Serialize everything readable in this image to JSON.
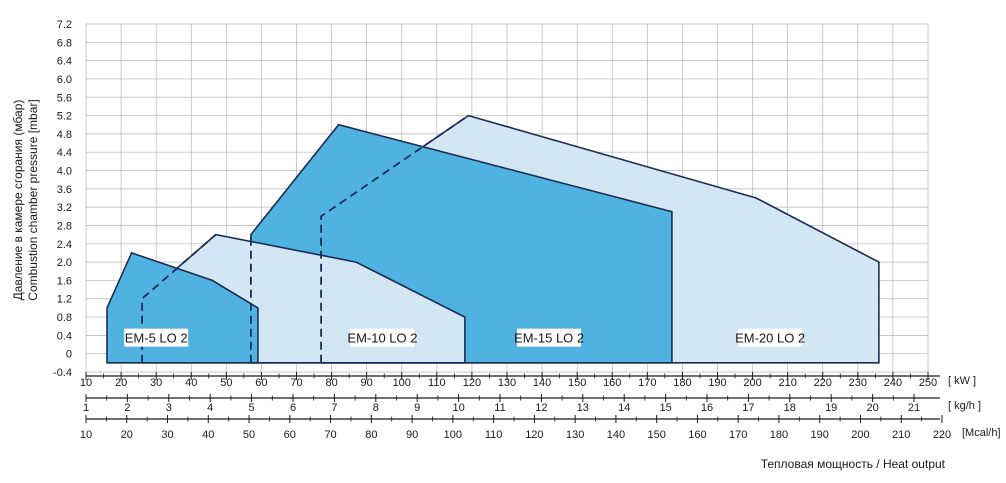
{
  "chart_data": {
    "type": "area",
    "ylabel": {
      "line1": "Давление в камере сгорания (мбар)",
      "line2": "Combustion chamber pressure [mbar]"
    },
    "xlabel": "Тепловая мощность / Heat output",
    "y_axis": {
      "ylim": [
        -0.4,
        7.2
      ],
      "ticks": [
        "-0.4",
        "0",
        "0.4",
        "0.8",
        "1.2",
        "1.6",
        "2.0",
        "2.4",
        "2.8",
        "3.2",
        "3.6",
        "4.0",
        "4.4",
        "4.8",
        "5.2",
        "5.6",
        "6.0",
        "6.4",
        "6.8",
        "7.2"
      ]
    },
    "x_axes": [
      {
        "unit": "[ kW ]",
        "range": [
          10,
          250
        ],
        "ticks": [
          "10",
          "20",
          "30",
          "40",
          "50",
          "60",
          "70",
          "80",
          "90",
          "100",
          "110",
          "120",
          "130",
          "140",
          "150",
          "160",
          "170",
          "180",
          "190",
          "200",
          "210",
          "220",
          "230",
          "240",
          "250"
        ]
      },
      {
        "unit": "[ kg/h ]",
        "range": [
          1,
          21
        ],
        "ticks": [
          "1",
          "2",
          "3",
          "4",
          "5",
          "6",
          "7",
          "8",
          "9",
          "10",
          "11",
          "12",
          "13",
          "14",
          "15",
          "16",
          "17",
          "18",
          "19",
          "20",
          "21"
        ]
      },
      {
        "unit": "[Mcal/h]",
        "range": [
          10,
          220
        ],
        "ticks": [
          "10",
          "20",
          "30",
          "40",
          "50",
          "60",
          "70",
          "80",
          "90",
          "100",
          "110",
          "120",
          "130",
          "140",
          "150",
          "160",
          "170",
          "180",
          "190",
          "200",
          "210",
          "220"
        ]
      }
    ],
    "grid": true,
    "colors": {
      "dark_fill": "#4fb2e0",
      "light_fill": "#d3e6f3",
      "outline": "#1c2d55",
      "grid": "#b5b5b5"
    },
    "series": [
      {
        "name": "EM-20 LO 2",
        "fill": "light",
        "points": [
          [
            77,
            -0.2
          ],
          [
            77,
            3.0
          ],
          [
            119,
            5.2
          ],
          [
            201,
            3.4
          ],
          [
            236,
            2.0
          ],
          [
            236,
            -0.2
          ]
        ],
        "dashed_edge": [
          [
            77,
            -0.2
          ],
          [
            77,
            3.0
          ],
          [
            119,
            5.2
          ]
        ]
      },
      {
        "name": "EM-15 LO 2",
        "fill": "dark",
        "points": [
          [
            57,
            -0.2
          ],
          [
            57,
            2.6
          ],
          [
            82,
            5.0
          ],
          [
            177,
            3.1
          ],
          [
            177,
            -0.2
          ]
        ],
        "dashed_edge": [
          [
            57,
            -0.2
          ],
          [
            57,
            2.6
          ]
        ]
      },
      {
        "name": "EM-10 LO 2",
        "fill": "light",
        "points": [
          [
            26,
            -0.2
          ],
          [
            26,
            1.2
          ],
          [
            47,
            2.6
          ],
          [
            87,
            2.0
          ],
          [
            118,
            0.8
          ],
          [
            118,
            -0.2
          ]
        ],
        "dashed_edge": [
          [
            26,
            -0.2
          ],
          [
            26,
            1.2
          ],
          [
            47,
            2.6
          ]
        ]
      },
      {
        "name": "EM-5 LO 2",
        "fill": "dark",
        "points": [
          [
            16,
            -0.2
          ],
          [
            16,
            1.0
          ],
          [
            23,
            2.2
          ],
          [
            46,
            1.6
          ],
          [
            59,
            1.0
          ],
          [
            59,
            -0.2
          ]
        ],
        "dashed_edge": []
      }
    ],
    "labels": [
      {
        "name": "EM-5 LO 2",
        "x": 30,
        "y": 0.35
      },
      {
        "name": "EM-10 LO 2",
        "x": 94.5,
        "y": 0.35
      },
      {
        "name": "EM-15 LO 2",
        "x": 142,
        "y": 0.35
      },
      {
        "name": "EM-20 LO 2",
        "x": 205,
        "y": 0.35
      }
    ]
  }
}
